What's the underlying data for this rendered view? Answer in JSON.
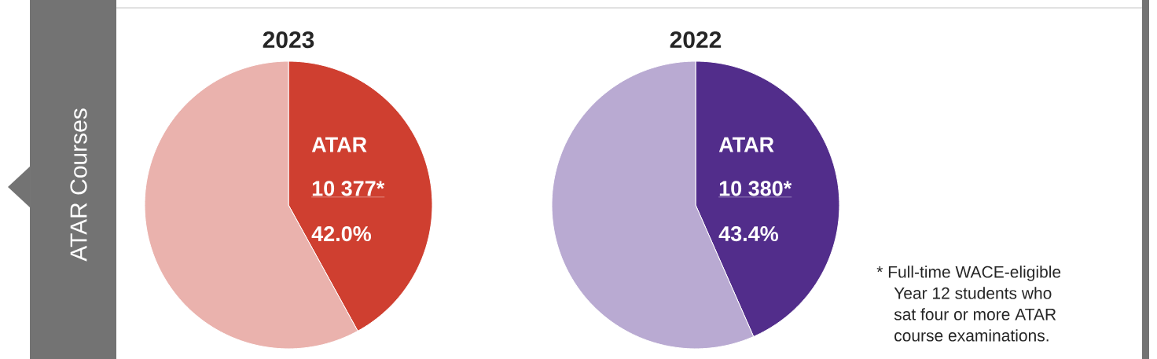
{
  "chart_data": [
    {
      "type": "pie",
      "title": "2023",
      "categories": [
        "ATAR",
        null
      ],
      "values": [
        42.0,
        58.0
      ],
      "colors": [
        "#cf3f30",
        "#eab2ad"
      ],
      "value_labels": [
        "42.0%",
        null
      ],
      "annotations": [
        "10 377*",
        "ATAR Courses"
      ]
    },
    {
      "type": "pie",
      "title": "2022",
      "categories": [
        "ATAR",
        null
      ],
      "values": [
        43.4,
        56.6
      ],
      "colors": [
        "#522d8b",
        "#b9aad2"
      ],
      "value_labels": [
        "43.4%",
        null
      ],
      "annotations": [
        "10 380*",
        "* Full-time WACE-eligible Year 12 students who sat four or more ATAR course examinations."
      ]
    }
  ]
}
